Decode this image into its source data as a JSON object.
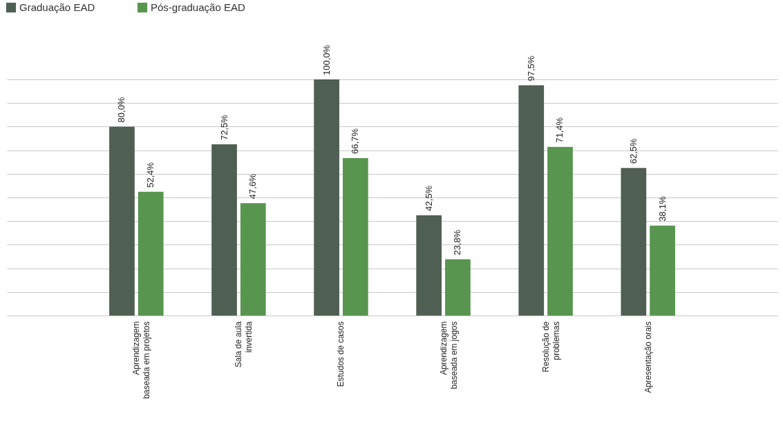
{
  "chart_data": {
    "type": "bar",
    "categories": [
      "Aprendizagem baseada em projetos",
      "Sala de aula invertida",
      "Estudos de casos",
      "Aprendizagem baseada em jogos",
      "Resolução de problemas",
      "Apresentação orais"
    ],
    "series": [
      {
        "name": "Graduação EAD",
        "color": "#505f53",
        "values": [
          80.0,
          72.5,
          100.0,
          42.5,
          97.5,
          62.5
        ],
        "value_labels": [
          "80,0%",
          "72,5%",
          "100,0%",
          "42,5%",
          "97,5%",
          "62,5%"
        ]
      },
      {
        "name": "Pós-graduação EAD",
        "color": "#58954f",
        "values": [
          52.4,
          47.6,
          66.7,
          23.8,
          71.4,
          38.1
        ],
        "value_labels": [
          "52,4%",
          "47,6%",
          "66,7%",
          "23,8%",
          "71,4%",
          "38,1%"
        ]
      }
    ],
    "ylim": [
      0,
      100
    ],
    "yticks": [
      {
        "value": 0,
        "label": null
      },
      {
        "value": 10,
        "label": null
      },
      {
        "value": 20,
        "label": null
      },
      {
        "value": 30,
        "label": null
      },
      {
        "value": 40,
        "label": null
      },
      {
        "value": 50,
        "label": null
      },
      {
        "value": 60,
        "label": null
      },
      {
        "value": 70,
        "label": null
      },
      {
        "value": 80,
        "label": null
      },
      {
        "value": 90,
        "label": null
      },
      {
        "value": 100,
        "label": null
      }
    ],
    "tick_labels": "x",
    "grid": "y",
    "legend": "top left"
  }
}
